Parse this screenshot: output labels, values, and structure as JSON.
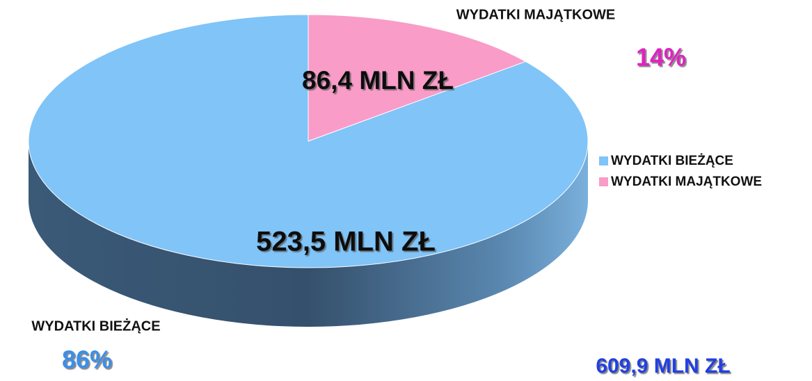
{
  "chart_data": {
    "type": "pie3d",
    "categories": [
      "WYDATKI BIEŻĄCE",
      "WYDATKI MAJĄTKOWE"
    ],
    "values": [
      523.5,
      86.4
    ],
    "value_labels": [
      "523,5 MLN ZŁ",
      "86,4 MLN ZŁ"
    ],
    "percent_labels": [
      "86%",
      "14%"
    ],
    "colors": [
      "#80c4f8",
      "#f99cc8"
    ],
    "percent_colors": [
      "#3b8fe8",
      "#e020c0"
    ],
    "total_label": "609,9 MLN ZŁ",
    "legend": "right"
  }
}
